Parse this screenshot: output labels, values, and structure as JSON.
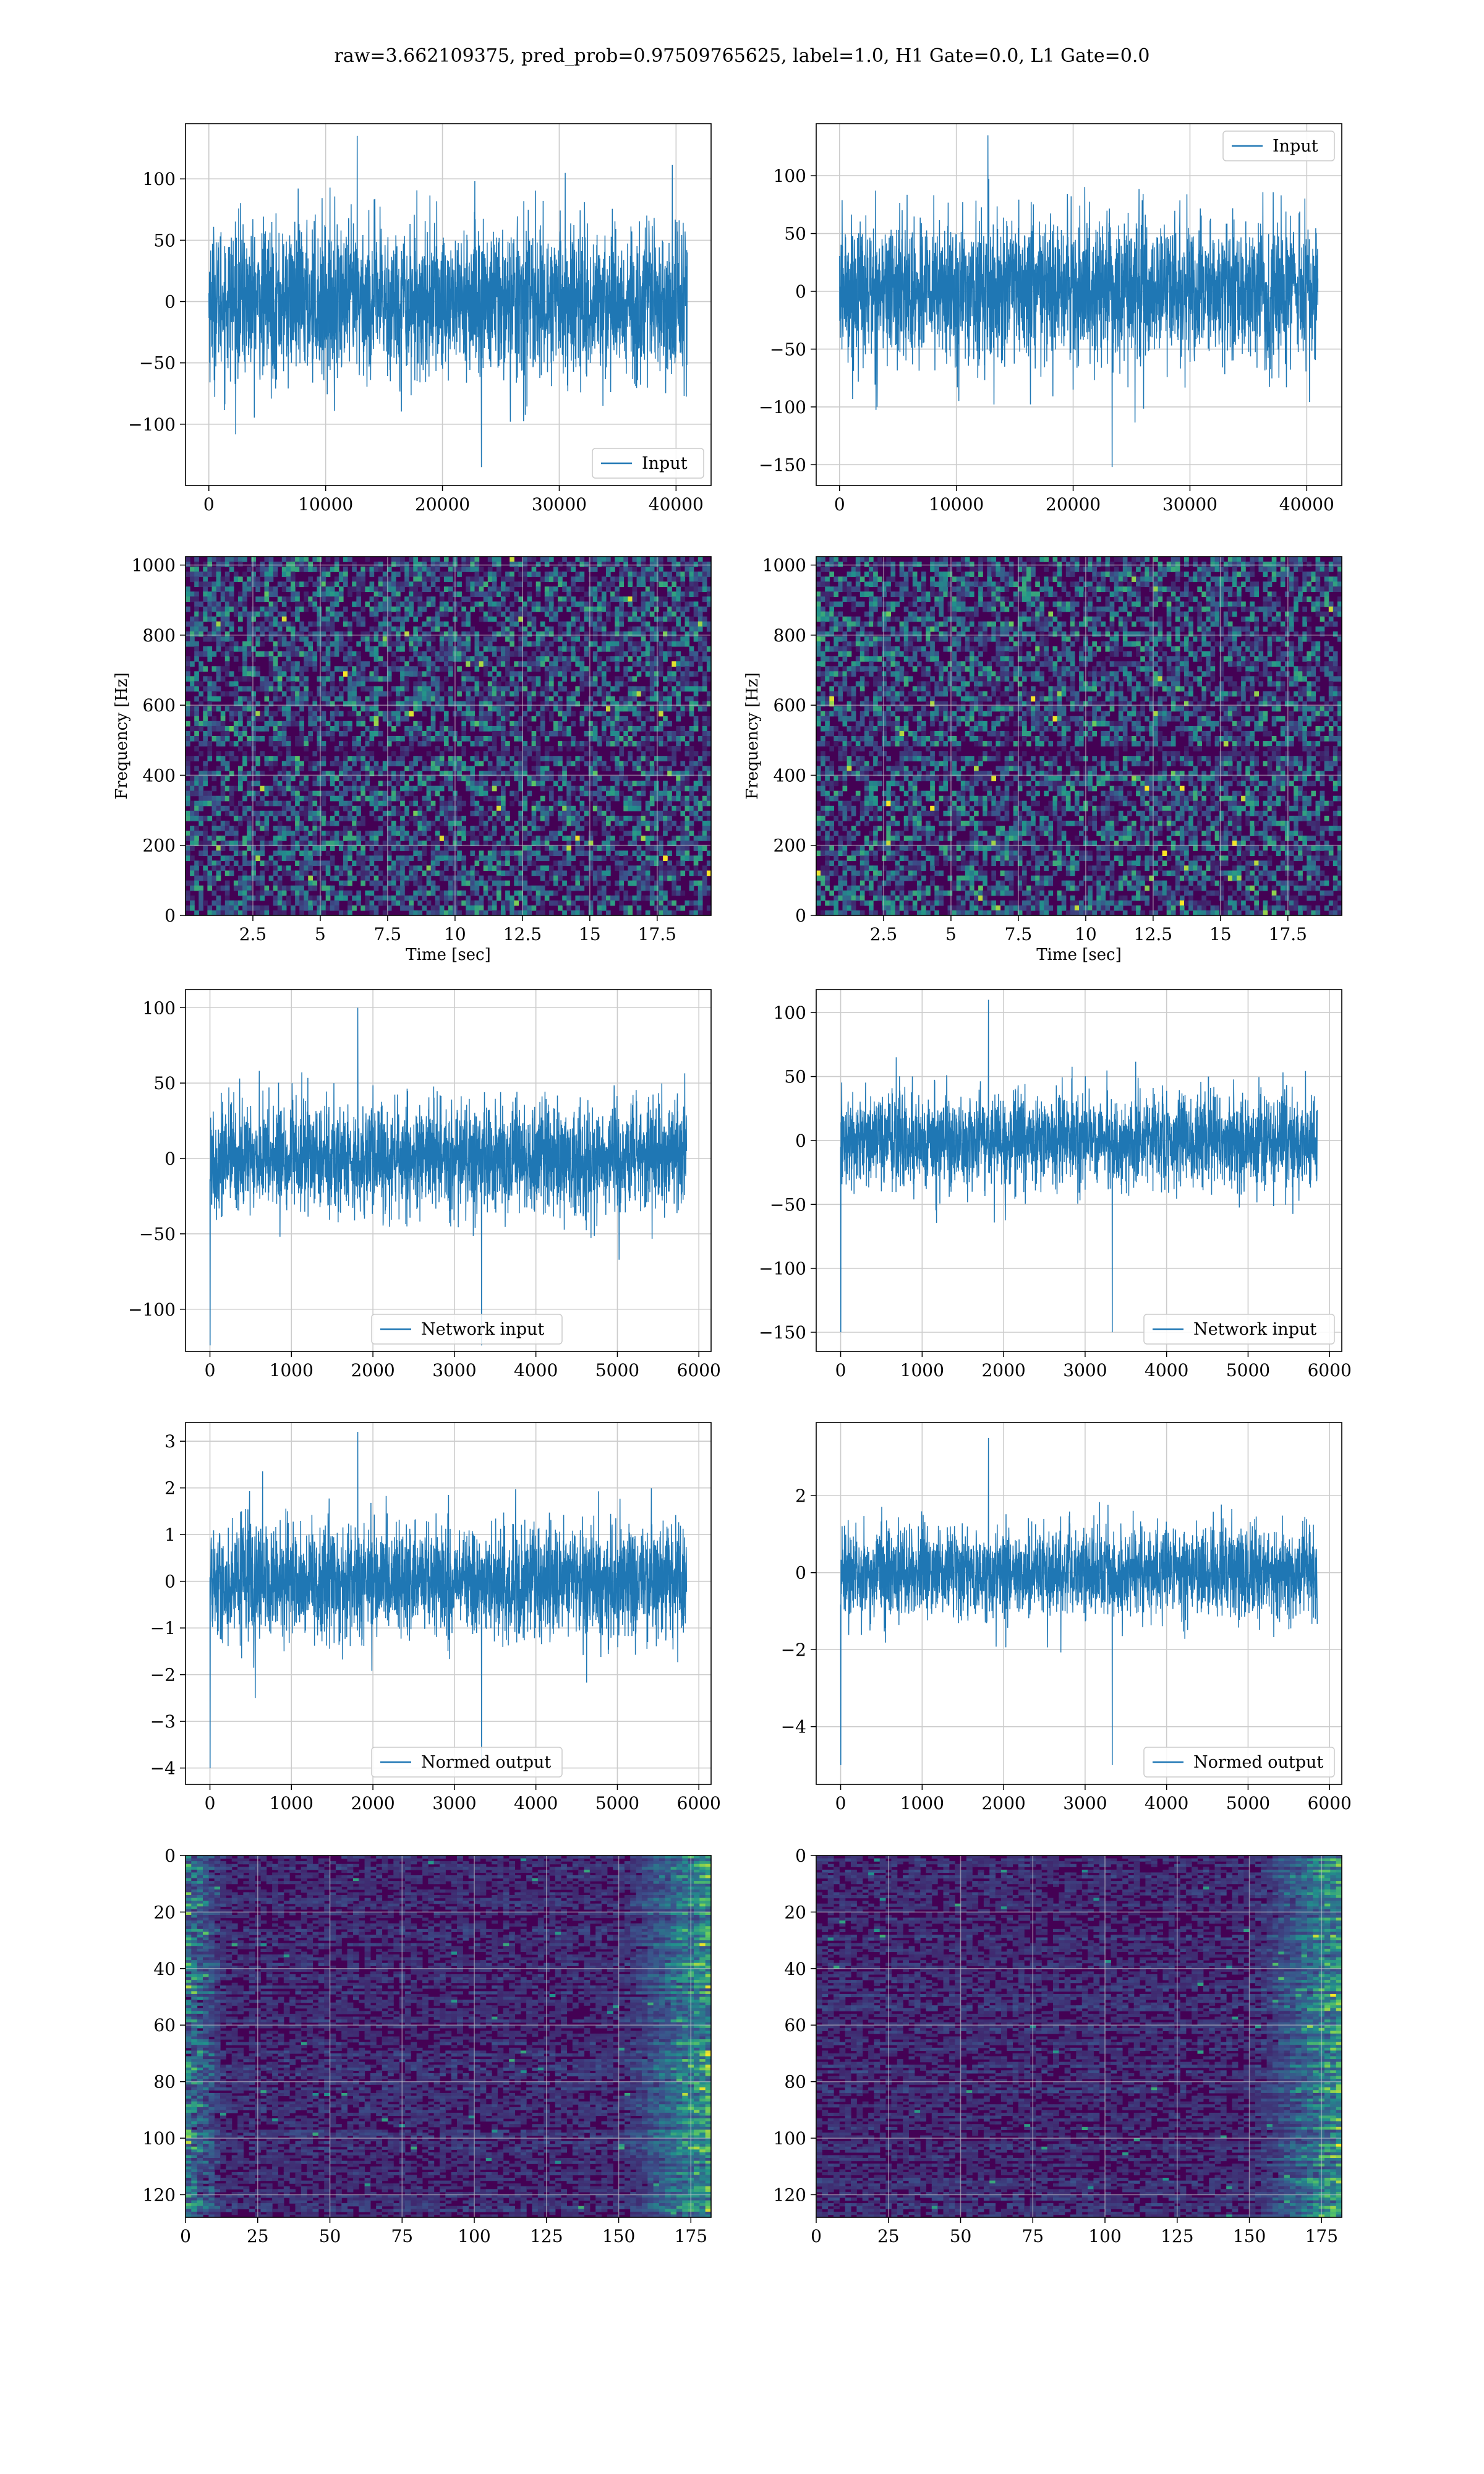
{
  "figure_title": "raw=3.662109375, pred_prob=0.97509765625, label=1.0, H1 Gate=0.0, L1 Gate=0.0",
  "colors": {
    "line": "#1f77b4",
    "grid": "#cccccc",
    "viridis_low": "#440154",
    "viridis_mid": "#3b528b",
    "viridis_teal": "#21918c",
    "viridis_green": "#5ec962",
    "viridis_high": "#fde725"
  },
  "chart_data": [
    {
      "id": "h1-input",
      "type": "line",
      "row": 0,
      "col": 0,
      "series": [
        {
          "name": "Input",
          "n": 40960,
          "y_min": -135,
          "y_max": 135,
          "typical_abs": 65
        }
      ],
      "xlim": [
        -2000,
        43000
      ],
      "ylim": [
        -150,
        145
      ],
      "xticks": [
        0,
        10000,
        20000,
        30000,
        40000
      ],
      "yticks": [
        -100,
        -50,
        0,
        50,
        100
      ],
      "legend": "lower-right",
      "grid": true,
      "xlabel": "",
      "ylabel": ""
    },
    {
      "id": "l1-input",
      "type": "line",
      "row": 0,
      "col": 1,
      "series": [
        {
          "name": "Input",
          "n": 40960,
          "y_min": -152,
          "y_max": 135,
          "typical_abs": 65
        }
      ],
      "xlim": [
        -2000,
        43000
      ],
      "ylim": [
        -168,
        145
      ],
      "xticks": [
        0,
        10000,
        20000,
        30000,
        40000
      ],
      "yticks": [
        -150,
        -100,
        -50,
        0,
        50,
        100
      ],
      "legend": "upper-right",
      "grid": true,
      "xlabel": "",
      "ylabel": ""
    },
    {
      "id": "h1-spectrogram",
      "type": "heatmap",
      "row": 1,
      "col": 0,
      "xlim": [
        0,
        19.5
      ],
      "ylim": [
        0,
        1024
      ],
      "xticks": [
        2.5,
        5.0,
        7.5,
        10.0,
        12.5,
        15.0,
        17.5
      ],
      "yticks": [
        0,
        200,
        400,
        600,
        800,
        1000
      ],
      "xlabel": "Time [sec]",
      "ylabel": "Frequency [Hz]",
      "grid": true,
      "colormap": "viridis"
    },
    {
      "id": "l1-spectrogram",
      "type": "heatmap",
      "row": 1,
      "col": 1,
      "xlim": [
        0,
        19.5
      ],
      "ylim": [
        0,
        1024
      ],
      "xticks": [
        2.5,
        5.0,
        7.5,
        10.0,
        12.5,
        15.0,
        17.5
      ],
      "yticks": [
        0,
        200,
        400,
        600,
        800,
        1000
      ],
      "xlabel": "Time [sec]",
      "ylabel": "Frequency [Hz]",
      "grid": true,
      "colormap": "viridis"
    },
    {
      "id": "h1-network-input",
      "type": "line",
      "row": 2,
      "col": 0,
      "series": [
        {
          "name": "Network input",
          "n": 5850,
          "y_min": -124,
          "y_max": 100,
          "typical_abs": 38
        }
      ],
      "xlim": [
        -300,
        6150
      ],
      "ylim": [
        -128,
        112
      ],
      "xticks": [
        0,
        1000,
        2000,
        3000,
        4000,
        5000,
        6000
      ],
      "yticks": [
        -100,
        -50,
        0,
        50,
        100
      ],
      "legend": "lower-center",
      "grid": true,
      "xlabel": "",
      "ylabel": ""
    },
    {
      "id": "l1-network-input",
      "type": "line",
      "row": 2,
      "col": 1,
      "series": [
        {
          "name": "Network input",
          "n": 5850,
          "y_min": -150,
          "y_max": 110,
          "typical_abs": 38
        }
      ],
      "xlim": [
        -300,
        6150
      ],
      "ylim": [
        -165,
        118
      ],
      "xticks": [
        0,
        1000,
        2000,
        3000,
        4000,
        5000,
        6000
      ],
      "yticks": [
        -150,
        -100,
        -50,
        0,
        50,
        100
      ],
      "legend": "lower-right",
      "grid": true,
      "xlabel": "",
      "ylabel": ""
    },
    {
      "id": "h1-normed-output",
      "type": "line",
      "row": 3,
      "col": 0,
      "series": [
        {
          "name": "Normed output",
          "n": 5850,
          "y_min": -4.0,
          "y_max": 3.2,
          "typical_abs": 1.25
        }
      ],
      "xlim": [
        -300,
        6150
      ],
      "ylim": [
        -4.35,
        3.4
      ],
      "xticks": [
        0,
        1000,
        2000,
        3000,
        4000,
        5000,
        6000
      ],
      "yticks": [
        -4,
        -3,
        -2,
        -1,
        0,
        1,
        2,
        3
      ],
      "legend": "lower-center",
      "grid": true,
      "xlabel": "",
      "ylabel": ""
    },
    {
      "id": "l1-normed-output",
      "type": "line",
      "row": 3,
      "col": 1,
      "series": [
        {
          "name": "Normed output",
          "n": 5850,
          "y_min": -5.0,
          "y_max": 3.5,
          "typical_abs": 1.25
        }
      ],
      "xlim": [
        -300,
        6150
      ],
      "ylim": [
        -5.5,
        3.9
      ],
      "xticks": [
        0,
        1000,
        2000,
        3000,
        4000,
        5000,
        6000
      ],
      "yticks": [
        -4,
        -2,
        0,
        2
      ],
      "legend": "lower-right",
      "grid": true,
      "xlabel": "",
      "ylabel": ""
    },
    {
      "id": "h1-feature-map",
      "type": "heatmap",
      "row": 4,
      "col": 0,
      "xlim": [
        0,
        182
      ],
      "ylim": [
        0,
        128
      ],
      "y_inverted": true,
      "xticks": [
        0,
        25,
        50,
        75,
        100,
        125,
        150,
        175
      ],
      "yticks": [
        0,
        20,
        40,
        60,
        80,
        100,
        120
      ],
      "xlabel": "",
      "ylabel": "",
      "grid": true,
      "colormap": "viridis",
      "bright_region": "right edge and left edge"
    },
    {
      "id": "l1-feature-map",
      "type": "heatmap",
      "row": 4,
      "col": 1,
      "xlim": [
        0,
        182
      ],
      "ylim": [
        0,
        128
      ],
      "y_inverted": true,
      "xticks": [
        0,
        25,
        50,
        75,
        100,
        125,
        150,
        175
      ],
      "yticks": [
        0,
        20,
        40,
        60,
        80,
        100,
        120
      ],
      "xlabel": "",
      "ylabel": "",
      "grid": true,
      "colormap": "viridis",
      "bright_region": "right edge"
    }
  ]
}
